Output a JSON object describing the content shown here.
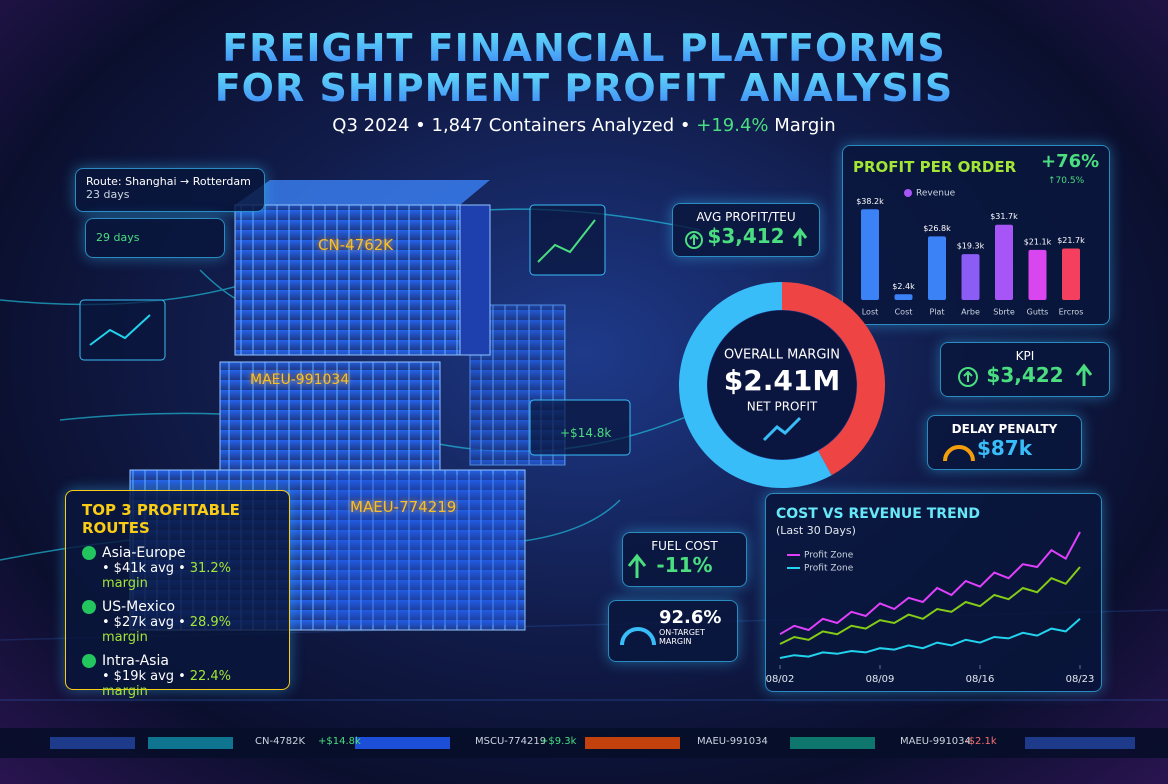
{
  "header": {
    "title_lines": [
      "FREIGHT FINANCIAL PLATFORMS",
      "FOR SHIPMENT PROFIT ANALYSIS"
    ],
    "subtitle": {
      "lead": "Q3 2024 • 1,847 Containers Analyzed •",
      "highlight": "+19.4%",
      "tail": "Margin"
    }
  },
  "route_card": {
    "route": "Route: Shanghai → Rotterdam",
    "transit": "23 days",
    "eta": "29 days"
  },
  "containers": [
    "CN-4762K",
    "MAEU-991034",
    "MAEU-774219"
  ],
  "float_gain": "+$14.8k",
  "avg_profit": {
    "label": "AVG PROFIT/TEU",
    "value": "$3,412"
  },
  "kpi": {
    "label": "KPI",
    "value": "$3,422"
  },
  "delay_penalty": {
    "label": "DELAY PENALTY",
    "value": "$87k"
  },
  "fuel_cost": {
    "label": "FUEL COST",
    "value": "-11%"
  },
  "on_target": {
    "value": "92.6%",
    "label": "ON-TARGET MARGIN"
  },
  "top_routes": {
    "title": "TOP 3 PROFITABLE ROUTES",
    "bullet": "•",
    "items": [
      {
        "name": "Asia-Europe",
        "avg": "$41k avg",
        "margin": "31.2% margin"
      },
      {
        "name": "US-Mexico",
        "avg": "$27k avg",
        "margin": "28.9% margin"
      },
      {
        "name": "Intra-Asia",
        "avg": "$19k avg",
        "margin": "22.4% margin"
      }
    ]
  },
  "ticker": [
    {
      "id": "CN-4782K",
      "delta": "+$14.8k"
    },
    {
      "id": "MSCU-774219",
      "delta": "+$9.3k"
    },
    {
      "id": "MAEU-991034"
    },
    {
      "id": "MAEU-991034",
      "delta": "-$2.1k"
    }
  ],
  "chart_data": [
    {
      "type": "bar",
      "title": "PROFIT PER ORDER",
      "badge": "+76%",
      "badge_sub": "↑70.5%",
      "categories": [
        "Lost",
        "Cost",
        "Plat",
        "Arbe",
        "Sbrte",
        "Gutts",
        "Ercros"
      ],
      "series": [
        {
          "name": "Revenue",
          "color": "#a855f7",
          "values": [
            38.2,
            2.4,
            26.8,
            19.3,
            31.7,
            21.1,
            21.7
          ]
        }
      ],
      "value_labels": [
        "$38.2k",
        "$2.4k",
        "$26.8k",
        "$19.3k",
        "$31.7k",
        "$21.1k",
        "$21.7k"
      ],
      "colors": [
        "#3b82f6",
        "#3b82f6",
        "#3b82f6",
        "#8b5cf6",
        "#a855f7",
        "#d946ef",
        "#f43f5e"
      ],
      "ylim": [
        0,
        40
      ]
    },
    {
      "type": "pie",
      "center": {
        "label": "OVERALL MARGIN",
        "value": "$2.41M",
        "sub": "NET PROFIT"
      },
      "values": [
        42,
        58
      ],
      "colors": [
        "#ef4444",
        "#38bdf8"
      ]
    },
    {
      "type": "line",
      "title": "COST VS REVENUE TREND",
      "subtitle": "(Last 30 Days)",
      "x": [
        0,
        1,
        2,
        3,
        4,
        5,
        6,
        7,
        8,
        9,
        10,
        11,
        12,
        13,
        14,
        15,
        16,
        17,
        18,
        19,
        20,
        21
      ],
      "xlim": [
        0,
        21
      ],
      "xticks": [
        {
          "value": 0,
          "label": "08/02"
        },
        {
          "value": 7,
          "label": "08/09"
        },
        {
          "value": 14,
          "label": "08/16"
        },
        {
          "value": 21,
          "label": "08/23"
        }
      ],
      "ylim": [
        0,
        100
      ],
      "series": [
        {
          "name": "Profit Zone",
          "color": "#e040fb",
          "values": [
            22,
            28,
            25,
            33,
            30,
            38,
            35,
            44,
            40,
            48,
            45,
            55,
            50,
            60,
            56,
            66,
            62,
            72,
            70,
            82,
            76,
            95
          ]
        },
        {
          "color": "#84cc16",
          "values": [
            15,
            20,
            18,
            24,
            22,
            28,
            26,
            32,
            30,
            36,
            33,
            40,
            38,
            45,
            42,
            50,
            47,
            55,
            52,
            62,
            58,
            70
          ]
        },
        {
          "name": "Profit Zone",
          "color": "#22d3ee",
          "values": [
            5,
            7,
            6,
            9,
            8,
            10,
            9,
            12,
            11,
            14,
            12,
            16,
            14,
            18,
            16,
            20,
            19,
            23,
            21,
            26,
            24,
            33
          ]
        }
      ]
    }
  ]
}
